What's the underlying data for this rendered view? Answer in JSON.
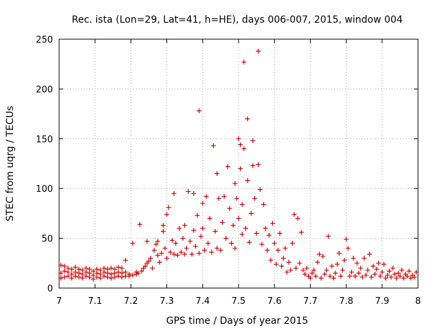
{
  "chart_data": {
    "type": "scatter",
    "title": "Rec. ista (Lon=29, Lat=41, h=HE), days 006-007, 2015, window 004",
    "xlabel": "GPS time / Days of year 2015",
    "ylabel": "STEC from uqrg / TECUs",
    "xlim": [
      7,
      8
    ],
    "ylim": [
      0,
      250
    ],
    "x_ticks": [
      7,
      7.1,
      7.2,
      7.3,
      7.4,
      7.5,
      7.6,
      7.7,
      7.8,
      7.9,
      8
    ],
    "x_tick_labels": [
      "7",
      "7.1",
      "7.2",
      "7.3",
      "7.4",
      "7.5",
      "7.6",
      "7.7",
      "7.8",
      "7.9",
      "8"
    ],
    "y_ticks": [
      0,
      50,
      100,
      150,
      200,
      250
    ],
    "y_tick_labels": [
      "0",
      "50",
      "100",
      "150",
      "200",
      "250"
    ],
    "grid": true,
    "marker": "+",
    "color": "#cc0000",
    "series": [
      {
        "points": [
          [
            7.005,
            10
          ],
          [
            7.005,
            15
          ],
          [
            7.005,
            23
          ],
          [
            7.015,
            11
          ],
          [
            7.015,
            17
          ],
          [
            7.015,
            22
          ],
          [
            7.025,
            12
          ],
          [
            7.025,
            16
          ],
          [
            7.025,
            20
          ],
          [
            7.035,
            10
          ],
          [
            7.035,
            14
          ],
          [
            7.035,
            19
          ],
          [
            7.045,
            12
          ],
          [
            7.045,
            16
          ],
          [
            7.045,
            21
          ],
          [
            7.055,
            11
          ],
          [
            7.055,
            15
          ],
          [
            7.055,
            19
          ],
          [
            7.065,
            10
          ],
          [
            7.065,
            14
          ],
          [
            7.065,
            18
          ],
          [
            7.075,
            12
          ],
          [
            7.075,
            16
          ],
          [
            7.075,
            20
          ],
          [
            7.085,
            11
          ],
          [
            7.085,
            15
          ],
          [
            7.085,
            19
          ],
          [
            7.095,
            9
          ],
          [
            7.095,
            13
          ],
          [
            7.095,
            17
          ],
          [
            7.105,
            11
          ],
          [
            7.105,
            15
          ],
          [
            7.105,
            19
          ],
          [
            7.115,
            10
          ],
          [
            7.115,
            14
          ],
          [
            7.115,
            18
          ],
          [
            7.125,
            12
          ],
          [
            7.125,
            16
          ],
          [
            7.125,
            20
          ],
          [
            7.135,
            11
          ],
          [
            7.135,
            15
          ],
          [
            7.135,
            19
          ],
          [
            7.145,
            10
          ],
          [
            7.145,
            14
          ],
          [
            7.145,
            20
          ],
          [
            7.155,
            11
          ],
          [
            7.155,
            15
          ],
          [
            7.155,
            19
          ],
          [
            7.165,
            12
          ],
          [
            7.165,
            16
          ],
          [
            7.165,
            21
          ],
          [
            7.175,
            11
          ],
          [
            7.175,
            15
          ],
          [
            7.175,
            20
          ],
          [
            7.185,
            12
          ],
          [
            7.185,
            16
          ],
          [
            7.185,
            28
          ],
          [
            7.195,
            12
          ],
          [
            7.195,
            14
          ],
          [
            7.205,
            13
          ],
          [
            7.205,
            45
          ],
          [
            7.215,
            14
          ],
          [
            7.215,
            16
          ],
          [
            7.22,
            15
          ],
          [
            7.225,
            64
          ],
          [
            7.23,
            17
          ],
          [
            7.235,
            20
          ],
          [
            7.24,
            22
          ],
          [
            7.245,
            25
          ],
          [
            7.245,
            47
          ],
          [
            7.25,
            27
          ],
          [
            7.255,
            30
          ],
          [
            7.26,
            20
          ],
          [
            7.265,
            38
          ],
          [
            7.27,
            44
          ],
          [
            7.275,
            33
          ],
          [
            7.275,
            47
          ],
          [
            7.28,
            26
          ],
          [
            7.285,
            35
          ],
          [
            7.29,
            57
          ],
          [
            7.29,
            63
          ],
          [
            7.295,
            40
          ],
          [
            7.3,
            30
          ],
          [
            7.3,
            74
          ],
          [
            7.305,
            81
          ],
          [
            7.31,
            36
          ],
          [
            7.315,
            48
          ],
          [
            7.32,
            34
          ],
          [
            7.32,
            95
          ],
          [
            7.325,
            45
          ],
          [
            7.33,
            33
          ],
          [
            7.335,
            60
          ],
          [
            7.34,
            36
          ],
          [
            7.345,
            50
          ],
          [
            7.35,
            34
          ],
          [
            7.35,
            63
          ],
          [
            7.355,
            40
          ],
          [
            7.36,
            97
          ],
          [
            7.365,
            47
          ],
          [
            7.37,
            34
          ],
          [
            7.375,
            58
          ],
          [
            7.375,
            95
          ],
          [
            7.38,
            42
          ],
          [
            7.385,
            73
          ],
          [
            7.39,
            178
          ],
          [
            7.39,
            35
          ],
          [
            7.395,
            52
          ],
          [
            7.4,
            85
          ],
          [
            7.4,
            60
          ],
          [
            7.405,
            38
          ],
          [
            7.41,
            92
          ],
          [
            7.415,
            45
          ],
          [
            7.42,
            70
          ],
          [
            7.425,
            36
          ],
          [
            7.43,
            143
          ],
          [
            7.435,
            57
          ],
          [
            7.44,
            115
          ],
          [
            7.44,
            40
          ],
          [
            7.445,
            90
          ],
          [
            7.45,
            38
          ],
          [
            7.455,
            66
          ],
          [
            7.46,
            92
          ],
          [
            7.465,
            50
          ],
          [
            7.47,
            122
          ],
          [
            7.475,
            80
          ],
          [
            7.48,
            45
          ],
          [
            7.485,
            63
          ],
          [
            7.49,
            105
          ],
          [
            7.49,
            40
          ],
          [
            7.495,
            90
          ],
          [
            7.5,
            70
          ],
          [
            7.5,
            150
          ],
          [
            7.505,
            144
          ],
          [
            7.505,
            120
          ],
          [
            7.51,
            54
          ],
          [
            7.51,
            84
          ],
          [
            7.515,
            227
          ],
          [
            7.515,
            140
          ],
          [
            7.52,
            60
          ],
          [
            7.525,
            170
          ],
          [
            7.525,
            108
          ],
          [
            7.53,
            46
          ],
          [
            7.535,
            75
          ],
          [
            7.54,
            148
          ],
          [
            7.54,
            123
          ],
          [
            7.545,
            90
          ],
          [
            7.55,
            55
          ],
          [
            7.555,
            238
          ],
          [
            7.555,
            124
          ],
          [
            7.56,
            99
          ],
          [
            7.565,
            44
          ],
          [
            7.57,
            84
          ],
          [
            7.575,
            60
          ],
          [
            7.58,
            38
          ],
          [
            7.585,
            53
          ],
          [
            7.59,
            28
          ],
          [
            7.595,
            65
          ],
          [
            7.6,
            45
          ],
          [
            7.605,
            24
          ],
          [
            7.61,
            38
          ],
          [
            7.615,
            55
          ],
          [
            7.62,
            22
          ],
          [
            7.625,
            30
          ],
          [
            7.63,
            40
          ],
          [
            7.635,
            16
          ],
          [
            7.64,
            26
          ],
          [
            7.645,
            18
          ],
          [
            7.65,
            45
          ],
          [
            7.655,
            74
          ],
          [
            7.66,
            20
          ],
          [
            7.665,
            70
          ],
          [
            7.67,
            25
          ],
          [
            7.675,
            56
          ],
          [
            7.68,
            18
          ],
          [
            7.685,
            14
          ],
          [
            7.69,
            20
          ],
          [
            7.695,
            12
          ],
          [
            7.7,
            10
          ],
          [
            7.705,
            15
          ],
          [
            7.71,
            18
          ],
          [
            7.715,
            12
          ],
          [
            7.72,
            26
          ],
          [
            7.725,
            34
          ],
          [
            7.73,
            10
          ],
          [
            7.735,
            32
          ],
          [
            7.74,
            14
          ],
          [
            7.745,
            18
          ],
          [
            7.75,
            52
          ],
          [
            7.755,
            12
          ],
          [
            7.76,
            22
          ],
          [
            7.765,
            10
          ],
          [
            7.77,
            15
          ],
          [
            7.775,
            24
          ],
          [
            7.78,
            35
          ],
          [
            7.785,
            12
          ],
          [
            7.79,
            18
          ],
          [
            7.795,
            28
          ],
          [
            7.8,
            49
          ],
          [
            7.805,
            40
          ],
          [
            7.81,
            12
          ],
          [
            7.815,
            16
          ],
          [
            7.82,
            30
          ],
          [
            7.825,
            12
          ],
          [
            7.83,
            25
          ],
          [
            7.835,
            15
          ],
          [
            7.84,
            20
          ],
          [
            7.845,
            11
          ],
          [
            7.85,
            30
          ],
          [
            7.855,
            13
          ],
          [
            7.86,
            18
          ],
          [
            7.865,
            34
          ],
          [
            7.87,
            11
          ],
          [
            7.875,
            22
          ],
          [
            7.88,
            14
          ],
          [
            7.885,
            19
          ],
          [
            7.89,
            25
          ],
          [
            7.895,
            12
          ],
          [
            7.9,
            16
          ],
          [
            7.905,
            24
          ],
          [
            7.91,
            10
          ],
          [
            7.915,
            13
          ],
          [
            7.92,
            17
          ],
          [
            7.925,
            11
          ],
          [
            7.93,
            20
          ],
          [
            7.935,
            14
          ],
          [
            7.94,
            10
          ],
          [
            7.945,
            15
          ],
          [
            7.95,
            12
          ],
          [
            7.955,
            18
          ],
          [
            7.96,
            10
          ],
          [
            7.965,
            14
          ],
          [
            7.97,
            12
          ],
          [
            7.975,
            17
          ],
          [
            7.98,
            10
          ],
          [
            7.985,
            13
          ],
          [
            7.99,
            11
          ],
          [
            7.995,
            16
          ]
        ]
      }
    ]
  }
}
